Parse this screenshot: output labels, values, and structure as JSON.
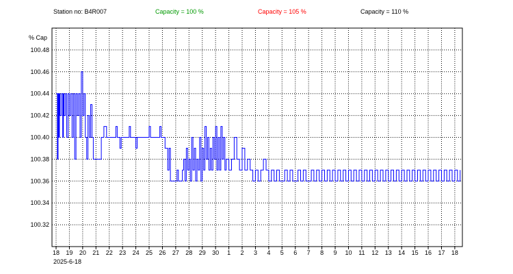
{
  "header": {
    "station": "Station no: B4R007",
    "cap100": "Capacity = 100 %",
    "cap105": "Capacity = 105 %",
    "cap110": "Capacity = 110 %"
  },
  "colors": {
    "series": "#0000ff",
    "cap100": "#009900",
    "cap105": "#ff0000",
    "cap110": "#000000",
    "grid": "#000000",
    "background": "#ffffff"
  },
  "chart_data": {
    "type": "line",
    "ylabel": "% Cap",
    "ylim": [
      100.3,
      100.5
    ],
    "yticks": [
      100.32,
      100.34,
      100.36,
      100.38,
      100.4,
      100.42,
      100.44,
      100.46,
      100.48
    ],
    "xlim": [
      0,
      30.5
    ],
    "xticks": [
      "18",
      "19",
      "20",
      "21",
      "22",
      "23",
      "24",
      "25",
      "26",
      "27",
      "28",
      "29",
      "30",
      "1",
      "2",
      "3",
      "4",
      "5",
      "6",
      "7",
      "8",
      "9",
      "10",
      "11",
      "12",
      "13",
      "14",
      "15",
      "16",
      "17",
      "18"
    ],
    "x_start_label": "2025-6-18",
    "grid": true,
    "series": [
      {
        "points": [
          [
            0.0,
            100.44
          ],
          [
            0.1,
            100.38
          ],
          [
            0.15,
            100.44
          ],
          [
            0.2,
            100.4
          ],
          [
            0.25,
            100.44
          ],
          [
            0.3,
            100.42
          ],
          [
            0.4,
            100.44
          ],
          [
            0.5,
            100.4
          ],
          [
            0.55,
            100.44
          ],
          [
            0.6,
            100.42
          ],
          [
            0.7,
            100.44
          ],
          [
            0.8,
            100.4
          ],
          [
            0.9,
            100.44
          ],
          [
            1.0,
            100.42
          ],
          [
            1.1,
            100.44
          ],
          [
            1.2,
            100.4
          ],
          [
            1.3,
            100.44
          ],
          [
            1.4,
            100.38
          ],
          [
            1.5,
            100.44
          ],
          [
            1.6,
            100.42
          ],
          [
            1.7,
            100.44
          ],
          [
            1.8,
            100.4
          ],
          [
            1.9,
            100.46
          ],
          [
            2.0,
            100.42
          ],
          [
            2.1,
            100.44
          ],
          [
            2.2,
            100.4
          ],
          [
            2.3,
            100.38
          ],
          [
            2.4,
            100.42
          ],
          [
            2.5,
            100.4
          ],
          [
            2.6,
            100.43
          ],
          [
            2.7,
            100.4
          ],
          [
            2.8,
            100.38
          ],
          [
            3.3,
            100.38
          ],
          [
            3.4,
            100.4
          ],
          [
            3.6,
            100.41
          ],
          [
            3.8,
            100.4
          ],
          [
            4.5,
            100.41
          ],
          [
            4.6,
            100.4
          ],
          [
            4.8,
            100.39
          ],
          [
            4.9,
            100.4
          ],
          [
            5.5,
            100.41
          ],
          [
            5.6,
            100.4
          ],
          [
            6.0,
            100.39
          ],
          [
            6.1,
            100.4
          ],
          [
            7.0,
            100.41
          ],
          [
            7.1,
            100.4
          ],
          [
            7.8,
            100.41
          ],
          [
            7.9,
            100.4
          ],
          [
            8.2,
            100.39
          ],
          [
            8.4,
            100.37
          ],
          [
            8.5,
            100.39
          ],
          [
            8.6,
            100.36
          ],
          [
            9.0,
            100.36
          ],
          [
            9.1,
            100.37
          ],
          [
            9.2,
            100.36
          ],
          [
            9.5,
            100.37
          ],
          [
            9.6,
            100.38
          ],
          [
            9.7,
            100.36
          ],
          [
            9.8,
            100.39
          ],
          [
            9.9,
            100.37
          ],
          [
            10.0,
            100.38
          ],
          [
            10.1,
            100.36
          ],
          [
            10.2,
            100.4
          ],
          [
            10.3,
            100.37
          ],
          [
            10.4,
            100.39
          ],
          [
            10.5,
            100.36
          ],
          [
            10.6,
            100.38
          ],
          [
            10.7,
            100.37
          ],
          [
            10.8,
            100.4
          ],
          [
            10.9,
            100.36
          ],
          [
            11.0,
            100.39
          ],
          [
            11.1,
            100.37
          ],
          [
            11.2,
            100.41
          ],
          [
            11.3,
            100.38
          ],
          [
            11.4,
            100.4
          ],
          [
            11.5,
            100.37
          ],
          [
            11.6,
            100.39
          ],
          [
            11.7,
            100.37
          ],
          [
            11.8,
            100.4
          ],
          [
            11.9,
            100.38
          ],
          [
            12.0,
            100.41
          ],
          [
            12.1,
            100.37
          ],
          [
            12.2,
            100.4
          ],
          [
            12.3,
            100.37
          ],
          [
            12.4,
            100.41
          ],
          [
            12.5,
            100.38
          ],
          [
            12.6,
            100.4
          ],
          [
            12.7,
            100.37
          ],
          [
            12.8,
            100.38
          ],
          [
            13.0,
            100.37
          ],
          [
            13.2,
            100.38
          ],
          [
            13.4,
            100.4
          ],
          [
            13.6,
            100.38
          ],
          [
            13.8,
            100.37
          ],
          [
            14.0,
            100.39
          ],
          [
            14.2,
            100.37
          ],
          [
            14.4,
            100.38
          ],
          [
            14.6,
            100.37
          ],
          [
            14.8,
            100.36
          ],
          [
            15.0,
            100.37
          ],
          [
            15.2,
            100.36
          ],
          [
            15.4,
            100.37
          ],
          [
            15.6,
            100.38
          ],
          [
            15.8,
            100.37
          ],
          [
            16.0,
            100.36
          ],
          [
            16.2,
            100.37
          ],
          [
            16.4,
            100.36
          ],
          [
            16.6,
            100.37
          ],
          [
            16.8,
            100.36
          ],
          [
            17.0,
            100.36
          ],
          [
            17.2,
            100.37
          ],
          [
            17.4,
            100.36
          ],
          [
            17.6,
            100.37
          ],
          [
            17.8,
            100.36
          ],
          [
            18.0,
            100.36
          ],
          [
            18.2,
            100.37
          ],
          [
            18.4,
            100.36
          ],
          [
            18.6,
            100.37
          ],
          [
            18.8,
            100.36
          ],
          [
            19.0,
            100.36
          ],
          [
            19.2,
            100.37
          ],
          [
            19.4,
            100.36
          ],
          [
            19.6,
            100.37
          ],
          [
            19.8,
            100.36
          ],
          [
            20.0,
            100.37
          ],
          [
            20.2,
            100.36
          ],
          [
            20.4,
            100.37
          ],
          [
            20.6,
            100.36
          ],
          [
            20.8,
            100.37
          ],
          [
            21.0,
            100.36
          ],
          [
            21.2,
            100.37
          ],
          [
            21.4,
            100.36
          ],
          [
            21.6,
            100.37
          ],
          [
            21.8,
            100.36
          ],
          [
            22.0,
            100.37
          ],
          [
            22.2,
            100.36
          ],
          [
            22.4,
            100.37
          ],
          [
            22.6,
            100.36
          ],
          [
            22.8,
            100.37
          ],
          [
            23.0,
            100.36
          ],
          [
            23.2,
            100.37
          ],
          [
            23.4,
            100.36
          ],
          [
            23.6,
            100.37
          ],
          [
            23.8,
            100.36
          ],
          [
            24.0,
            100.37
          ],
          [
            24.2,
            100.36
          ],
          [
            24.4,
            100.37
          ],
          [
            24.6,
            100.36
          ],
          [
            24.8,
            100.37
          ],
          [
            25.0,
            100.36
          ],
          [
            25.2,
            100.37
          ],
          [
            25.4,
            100.36
          ],
          [
            25.6,
            100.37
          ],
          [
            25.8,
            100.36
          ],
          [
            26.0,
            100.37
          ],
          [
            26.2,
            100.36
          ],
          [
            26.4,
            100.37
          ],
          [
            26.6,
            100.36
          ],
          [
            26.8,
            100.37
          ],
          [
            27.0,
            100.36
          ],
          [
            27.2,
            100.37
          ],
          [
            27.4,
            100.36
          ],
          [
            27.6,
            100.37
          ],
          [
            27.8,
            100.36
          ],
          [
            28.0,
            100.37
          ],
          [
            28.2,
            100.36
          ],
          [
            28.4,
            100.37
          ],
          [
            28.6,
            100.36
          ],
          [
            28.8,
            100.37
          ],
          [
            29.0,
            100.36
          ],
          [
            29.2,
            100.37
          ],
          [
            29.4,
            100.36
          ],
          [
            29.6,
            100.37
          ],
          [
            29.8,
            100.36
          ],
          [
            30.0,
            100.37
          ],
          [
            30.2,
            100.36
          ],
          [
            30.4,
            100.37
          ]
        ]
      }
    ]
  }
}
